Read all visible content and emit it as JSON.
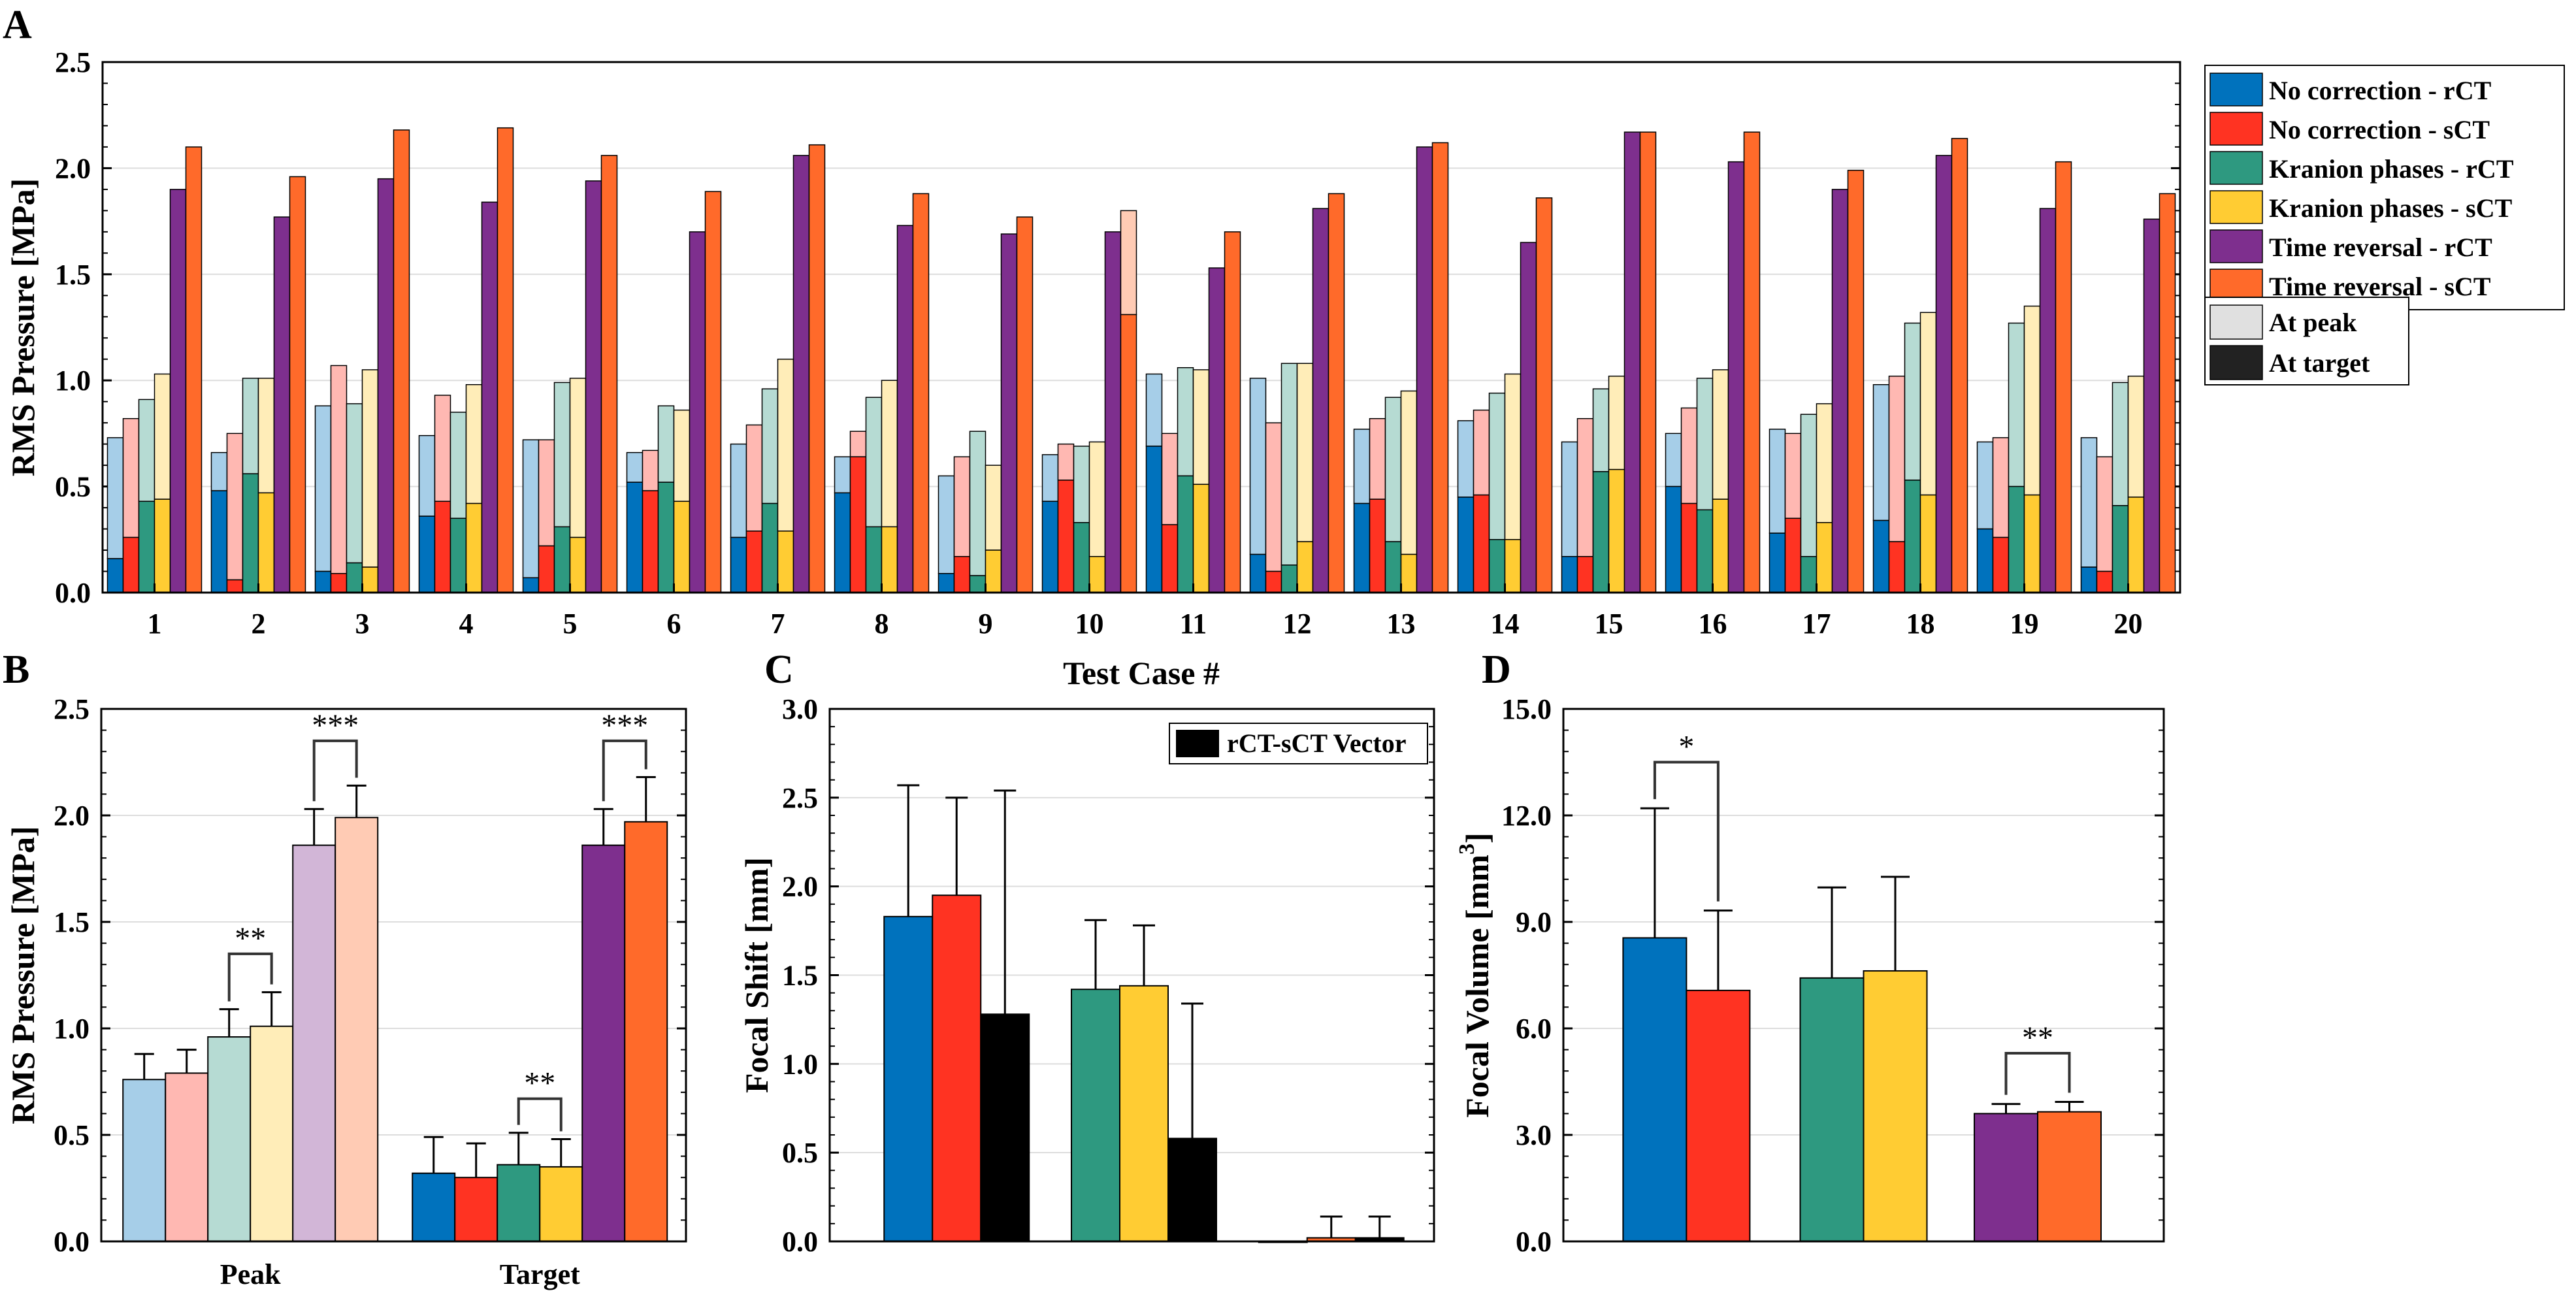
{
  "colors": {
    "no_rct": "#0072BD",
    "no_sct": "#FF3322",
    "kr_rct": "#2E9980",
    "kr_sct": "#FFCC33",
    "tr_rct": "#7E2F8E",
    "tr_sct": "#FF6A2A",
    "peak_shade": "#E0E0E0",
    "target_shade": "#222222",
    "vector": "#000000",
    "grid": "#DDDDDD"
  },
  "legend_main": [
    {
      "label": "No correction - rCT",
      "color": "#0072BD"
    },
    {
      "label": "No correction - sCT",
      "color": "#FF3322"
    },
    {
      "label": "Kranion phases - rCT",
      "color": "#2E9980"
    },
    {
      "label": "Kranion phases - sCT",
      "color": "#FFCC33"
    },
    {
      "label": "Time reversal - rCT",
      "color": "#7E2F8E"
    },
    {
      "label": "Time reversal - sCT",
      "color": "#FF6A2A"
    }
  ],
  "legend_shade": [
    {
      "label": "At peak",
      "color": "#E0E0E0"
    },
    {
      "label": "At target",
      "color": "#222222"
    }
  ],
  "chart_data": [
    {
      "id": "A",
      "type": "bar",
      "panel_label": "A",
      "xlabel": "Test Case #",
      "ylabel": "RMS Pressure [MPa]",
      "ylim": [
        0,
        2.5
      ],
      "yticks": [
        "0.0",
        "0.5",
        "1.0",
        "1.5",
        "2.0",
        "2.5"
      ],
      "categories": [
        "1",
        "2",
        "3",
        "4",
        "5",
        "6",
        "7",
        "8",
        "9",
        "10",
        "11",
        "12",
        "13",
        "14",
        "15",
        "16",
        "17",
        "18",
        "19",
        "20"
      ],
      "series": [
        {
          "name": "No correction - rCT",
          "peak": [
            0.73,
            0.66,
            0.88,
            0.74,
            0.72,
            0.66,
            0.7,
            0.64,
            0.55,
            0.65,
            1.03,
            1.01,
            0.77,
            0.81,
            0.71,
            0.75,
            0.77,
            0.98,
            0.71,
            0.73
          ],
          "target": [
            0.16,
            0.48,
            0.1,
            0.36,
            0.07,
            0.52,
            0.26,
            0.47,
            0.09,
            0.43,
            0.69,
            0.18,
            0.42,
            0.45,
            0.17,
            0.5,
            0.28,
            0.34,
            0.3,
            0.12
          ]
        },
        {
          "name": "No correction - sCT",
          "peak": [
            0.82,
            0.75,
            1.07,
            0.93,
            0.72,
            0.67,
            0.79,
            0.76,
            0.64,
            0.7,
            0.75,
            0.8,
            0.82,
            0.86,
            0.82,
            0.87,
            0.75,
            1.02,
            0.73,
            0.64
          ],
          "target": [
            0.26,
            0.06,
            0.09,
            0.43,
            0.22,
            0.48,
            0.29,
            0.64,
            0.17,
            0.53,
            0.32,
            0.1,
            0.44,
            0.46,
            0.17,
            0.42,
            0.35,
            0.24,
            0.26,
            0.1
          ]
        },
        {
          "name": "Kranion phases - rCT",
          "peak": [
            0.91,
            1.01,
            0.89,
            0.85,
            0.99,
            0.88,
            0.96,
            0.92,
            0.76,
            0.69,
            1.06,
            1.08,
            0.92,
            0.94,
            0.96,
            1.01,
            0.84,
            1.27,
            1.27,
            0.99
          ],
          "target": [
            0.43,
            0.56,
            0.14,
            0.35,
            0.31,
            0.52,
            0.42,
            0.31,
            0.08,
            0.33,
            0.55,
            0.13,
            0.24,
            0.25,
            0.57,
            0.39,
            0.17,
            0.53,
            0.5,
            0.41
          ]
        },
        {
          "name": "Kranion phases - sCT",
          "peak": [
            1.03,
            1.01,
            1.05,
            0.98,
            1.01,
            0.86,
            1.1,
            1.0,
            0.6,
            0.71,
            1.05,
            1.08,
            0.95,
            1.03,
            1.02,
            1.05,
            0.89,
            1.32,
            1.35,
            1.02
          ],
          "target": [
            0.44,
            0.47,
            0.12,
            0.42,
            0.26,
            0.43,
            0.29,
            0.31,
            0.2,
            0.17,
            0.51,
            0.24,
            0.18,
            0.25,
            0.58,
            0.44,
            0.33,
            0.46,
            0.46,
            0.45
          ]
        },
        {
          "name": "Time reversal - rCT",
          "peak": [
            1.9,
            1.77,
            1.95,
            1.84,
            1.94,
            1.7,
            2.06,
            1.73,
            1.69,
            1.7,
            1.53,
            1.81,
            2.1,
            1.65,
            2.17,
            2.03,
            1.9,
            2.06,
            1.81,
            1.76
          ],
          "target": [
            1.9,
            1.77,
            1.95,
            1.84,
            1.94,
            1.7,
            2.06,
            1.73,
            1.69,
            1.7,
            1.53,
            1.81,
            2.1,
            1.65,
            2.17,
            2.03,
            1.9,
            2.06,
            1.81,
            1.76
          ]
        },
        {
          "name": "Time reversal - sCT",
          "peak": [
            2.1,
            1.96,
            2.18,
            2.19,
            2.06,
            1.89,
            2.11,
            1.88,
            1.77,
            1.8,
            1.7,
            1.88,
            2.12,
            1.86,
            2.17,
            2.17,
            1.99,
            2.14,
            2.03,
            1.88
          ],
          "target": [
            2.1,
            1.96,
            2.18,
            2.19,
            2.06,
            1.89,
            2.11,
            1.88,
            1.77,
            1.31,
            1.7,
            1.88,
            2.12,
            1.86,
            2.17,
            2.17,
            1.99,
            2.14,
            2.03,
            1.88
          ]
        }
      ]
    },
    {
      "id": "B",
      "type": "bar",
      "panel_label": "B",
      "xlabel": "",
      "ylabel": "RMS Pressure [MPa]",
      "ylim": [
        0,
        2.5
      ],
      "yticks": [
        "0.0",
        "0.5",
        "1.0",
        "1.5",
        "2.0",
        "2.5"
      ],
      "categories": [
        "Peak",
        "Target"
      ],
      "series": [
        {
          "name": "No correction - rCT",
          "values": [
            0.76,
            0.32
          ],
          "err": [
            0.12,
            0.17
          ]
        },
        {
          "name": "No correction - sCT",
          "values": [
            0.79,
            0.3
          ],
          "err": [
            0.11,
            0.16
          ]
        },
        {
          "name": "Kranion phases - rCT",
          "values": [
            0.96,
            0.36
          ],
          "err": [
            0.13,
            0.15
          ]
        },
        {
          "name": "Kranion phases - sCT",
          "values": [
            1.01,
            0.35
          ],
          "err": [
            0.16,
            0.13
          ]
        },
        {
          "name": "Time reversal - rCT",
          "values": [
            1.86,
            1.86
          ],
          "err": [
            0.17,
            0.17
          ]
        },
        {
          "name": "Time reversal - sCT",
          "values": [
            1.99,
            1.97
          ],
          "err": [
            0.15,
            0.21
          ]
        }
      ],
      "significance": [
        {
          "group": 0,
          "from": 2,
          "to": 3,
          "label": "**",
          "y": 1.35
        },
        {
          "group": 0,
          "from": 4,
          "to": 5,
          "label": "***",
          "y": 2.35
        },
        {
          "group": 1,
          "from": 2,
          "to": 3,
          "label": "**",
          "y": 0.67
        },
        {
          "group": 1,
          "from": 4,
          "to": 5,
          "label": "***",
          "y": 2.35
        }
      ]
    },
    {
      "id": "C",
      "type": "bar",
      "panel_label": "C",
      "xlabel": "",
      "ylabel": "Focal Shift [mm]",
      "ylim": [
        0,
        3.0
      ],
      "yticks": [
        "0.0",
        "0.5",
        "1.0",
        "1.5",
        "2.0",
        "2.5",
        "3.0"
      ],
      "legend": "rCT-sCT Vector",
      "groups": [
        {
          "name": "No correction",
          "values": [
            1.83,
            1.95,
            1.28
          ],
          "err": [
            0.74,
            0.55,
            1.26
          ],
          "colors": [
            "#0072BD",
            "#FF3322",
            "#000000"
          ]
        },
        {
          "name": "Kranion phases",
          "values": [
            1.42,
            1.44,
            0.58
          ],
          "err": [
            0.39,
            0.34,
            0.76
          ],
          "colors": [
            "#2E9980",
            "#FFCC33",
            "#000000"
          ]
        },
        {
          "name": "Time reversal",
          "values": [
            0.0,
            0.02,
            0.02
          ],
          "err": [
            0.0,
            0.12,
            0.12
          ],
          "colors": [
            "#7E2F8E",
            "#FF6A2A",
            "#000000"
          ]
        }
      ]
    },
    {
      "id": "D",
      "type": "bar",
      "panel_label": "D",
      "xlabel": "",
      "ylabel": "Focal Volume [mm",
      "ylabel_sup": "3",
      "ylabel_end": "]",
      "ylim": [
        0,
        15.0
      ],
      "yticks": [
        "0.0",
        "3.0",
        "6.0",
        "9.0",
        "12.0",
        "15.0"
      ],
      "groups": [
        {
          "name": "No correction",
          "values": [
            8.55,
            7.07
          ],
          "err": [
            3.65,
            2.25
          ],
          "colors": [
            "#0072BD",
            "#FF3322"
          ]
        },
        {
          "name": "Kranion phases",
          "values": [
            7.42,
            7.62
          ],
          "err": [
            2.55,
            2.65
          ],
          "colors": [
            "#2E9980",
            "#FFCC33"
          ]
        },
        {
          "name": "Time reversal",
          "values": [
            3.6,
            3.65
          ],
          "err": [
            0.27,
            0.28
          ],
          "colors": [
            "#7E2F8E",
            "#FF6A2A"
          ]
        }
      ],
      "significance": [
        {
          "group": 0,
          "label": "*",
          "y": 13.5
        },
        {
          "group": 2,
          "label": "**",
          "y": 5.3
        }
      ]
    }
  ]
}
